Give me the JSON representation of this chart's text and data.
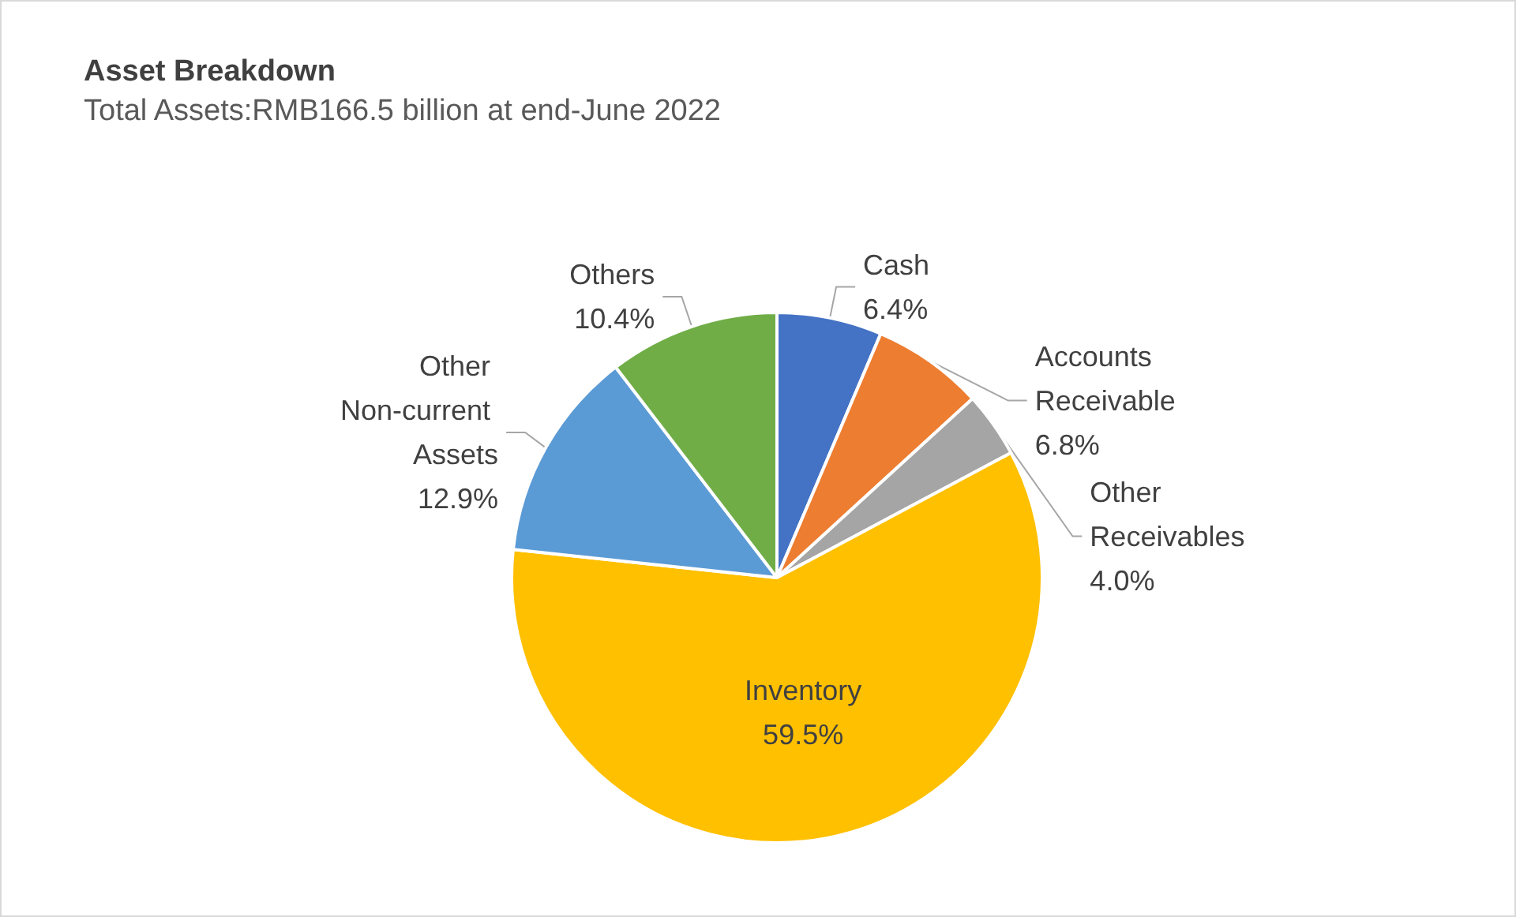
{
  "chart_data": {
    "type": "pie",
    "title": "Asset Breakdown",
    "subtitle": "Total Assets:RMB166.5 billion at end-June 2022",
    "categories": [
      "Cash",
      "Accounts Receivable",
      "Other Receivables",
      "Inventory",
      "Other Non-current Assets",
      "Others"
    ],
    "values": [
      6.4,
      6.8,
      4.0,
      59.5,
      12.9,
      10.4
    ],
    "value_labels": [
      "6.4%",
      "6.8%",
      "4.0%",
      "59.5%",
      "12.9%",
      "10.4%"
    ],
    "colors": [
      "#4472c4",
      "#ed7d31",
      "#a5a5a5",
      "#ffc000",
      "#5b9bd5",
      "#70ad47"
    ],
    "legend": false
  }
}
